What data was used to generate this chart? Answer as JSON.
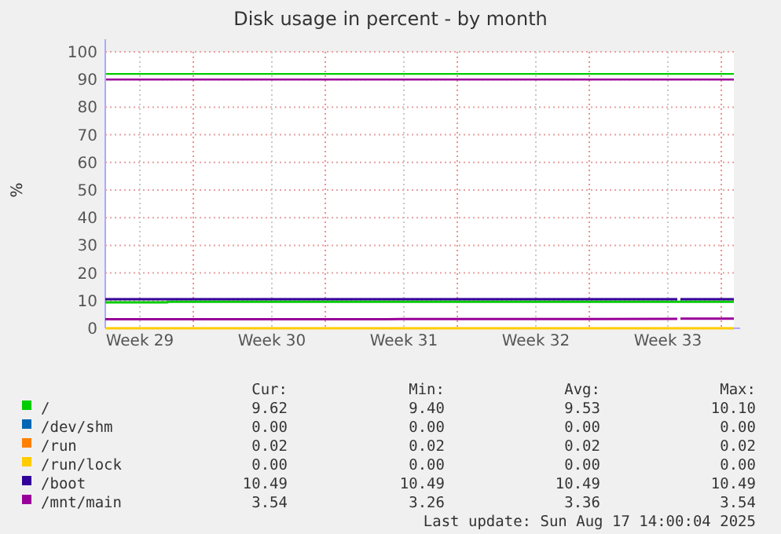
{
  "chart_data": {
    "type": "line",
    "title": "Disk usage in percent - by month",
    "ylabel": "%",
    "xlim": [
      "2025-07-15T08:00",
      "2025-08-17T16:00"
    ],
    "xticks": [
      {
        "value": "2025-07-17T04:00",
        "label": "Week 29"
      },
      {
        "value": "2025-07-24T04:00",
        "label": "Week 30"
      },
      {
        "value": "2025-07-31T04:00",
        "label": "Week 31"
      },
      {
        "value": "2025-08-07T04:00",
        "label": "Week 32"
      },
      {
        "value": "2025-08-14T04:00",
        "label": "Week 33"
      },
      {
        "value": "2025-07-20T00:00",
        "label": null
      },
      {
        "value": "2025-07-27T00:00",
        "label": null
      },
      {
        "value": "2025-08-03T00:00",
        "label": null
      },
      {
        "value": "2025-08-10T00:00",
        "label": null
      },
      {
        "value": "2025-08-17T00:00",
        "label": null
      }
    ],
    "ylim": [
      0,
      100
    ],
    "yticks": [
      0,
      10,
      20,
      30,
      40,
      50,
      60,
      70,
      80,
      90,
      100
    ],
    "grid": true,
    "legend": "bottom",
    "marker": "none",
    "line_style": "solid",
    "series": [
      {
        "name": "/",
        "color": "#00cc00",
        "x": [
          "2025-07-15T08:00",
          "2025-07-18T15:00",
          "2025-07-18T16:00",
          "2025-08-17T16:00"
        ],
        "values": [
          9.4,
          9.4,
          9.6,
          9.6
        ]
      },
      {
        "name": "/dev/shm",
        "color": "#0066b3"
      },
      {
        "name": "/run",
        "color": "#ff8000"
      },
      {
        "name": "/run/lock",
        "color": "#ffcc00",
        "x": [
          "2025-07-15T08:00",
          "2025-08-17T16:00"
        ],
        "values": [
          0,
          0
        ]
      },
      {
        "name": "/boot",
        "color": "#330099",
        "x": [
          "2025-07-15T08:00",
          "2025-08-14T16:00",
          "2025-08-14T18:00",
          "2025-08-14T20:00",
          "2025-08-17T16:00"
        ],
        "values": [
          10.5,
          10.5,
          null,
          10.5,
          10.5
        ]
      },
      {
        "name": "/mnt/main",
        "color": "#990099",
        "x": [
          "2025-07-15T08:00",
          "2025-07-30T08:00",
          "2025-08-14T16:00",
          "2025-08-14T18:00",
          "2025-08-14T20:00",
          "2025-08-17T16:00"
        ],
        "values": [
          3.3,
          3.3,
          3.4,
          null,
          3.5,
          3.5
        ]
      }
    ],
    "ref_lines": [
      {
        "axis": "y",
        "value": 92,
        "label": null,
        "color": "#00cc00"
      },
      {
        "axis": "y",
        "value": 90,
        "label": null,
        "color": "#990099"
      }
    ],
    "annotations": [
      "Cur:",
      "Min:",
      "Avg:",
      "Max:",
      "9.62",
      "9.40",
      "9.53",
      "10.10",
      "0.00",
      "0.00",
      "0.00",
      "0.00",
      "0.02",
      "0.02",
      "0.02",
      "0.02",
      "0.00",
      "0.00",
      "0.00",
      "0.00",
      "10.49",
      "10.49",
      "10.49",
      "10.49",
      "3.54",
      "3.26",
      "3.36",
      "3.54",
      "Last update: Sun Aug 17 14:00:04 2025"
    ]
  }
}
